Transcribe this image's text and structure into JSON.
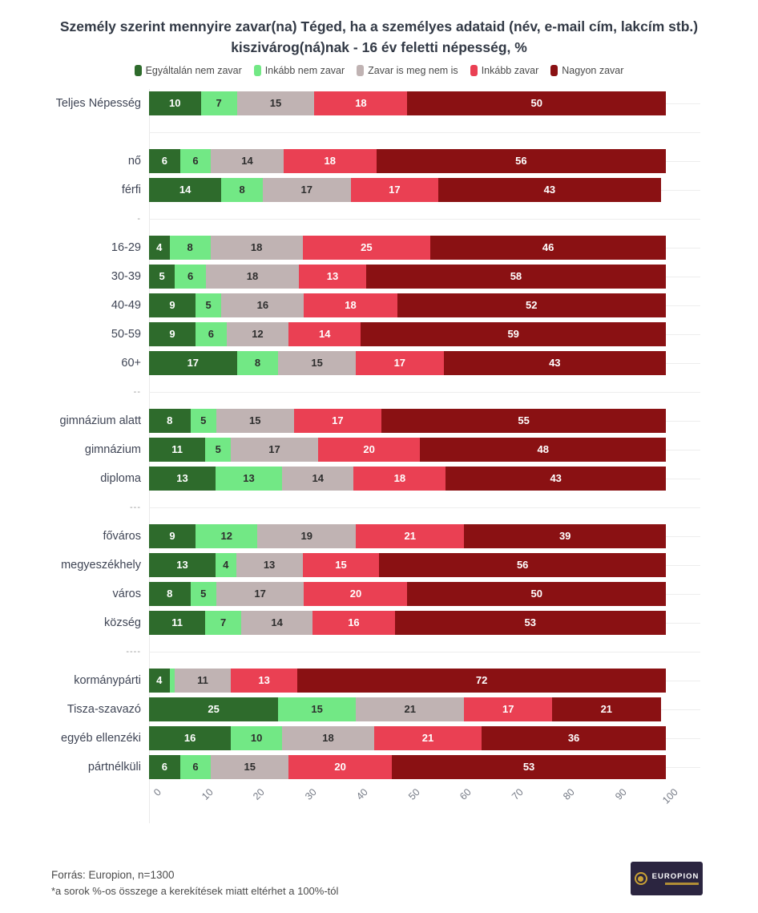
{
  "title": "Személy szerint mennyire zavar(na) Téged, ha a személyes adataid (név, e-mail cím, lakcím stb.) kiszivárog(ná)nak - 16 év feletti népesség, %",
  "legend": [
    {
      "label": "Egyáltalán nem zavar",
      "color": "#2e6b2c"
    },
    {
      "label": "Inkább nem zavar",
      "color": "#72e885"
    },
    {
      "label": "Zavar is meg nem is",
      "color": "#c0b3b3"
    },
    {
      "label": "Inkább zavar",
      "color": "#ea4053"
    },
    {
      "label": "Nagyon zavar",
      "color": "#8a1113"
    }
  ],
  "chart_data": {
    "type": "bar",
    "orientation": "horizontal",
    "stacked": true,
    "xlim": [
      0,
      100
    ],
    "x_ticks": [
      0,
      10,
      20,
      30,
      40,
      50,
      60,
      70,
      80,
      90,
      100
    ],
    "grid": true,
    "legend_position": "top",
    "series_names": [
      "Egyáltalán nem zavar",
      "Inkább nem zavar",
      "Zavar is meg nem is",
      "Inkább zavar",
      "Nagyon zavar"
    ],
    "value_text_colors": [
      "#ffffff",
      "#2e2e2e",
      "#2e2e2e",
      "#ffffff",
      "#ffffff"
    ],
    "rows": [
      {
        "label": "Teljes Népesség",
        "values": [
          10,
          7,
          15,
          18,
          50
        ]
      },
      {
        "separator": ""
      },
      {
        "label": "nő",
        "values": [
          6,
          6,
          14,
          18,
          56
        ]
      },
      {
        "label": "férfi",
        "values": [
          14,
          8,
          17,
          17,
          43
        ]
      },
      {
        "separator": "-"
      },
      {
        "label": "16-29",
        "values": [
          4,
          8,
          18,
          25,
          46
        ]
      },
      {
        "label": "30-39",
        "values": [
          5,
          6,
          18,
          13,
          58
        ]
      },
      {
        "label": "40-49",
        "values": [
          9,
          5,
          16,
          18,
          52
        ]
      },
      {
        "label": "50-59",
        "values": [
          9,
          6,
          12,
          14,
          59
        ]
      },
      {
        "label": "60+",
        "values": [
          17,
          8,
          15,
          17,
          43
        ]
      },
      {
        "separator": "--"
      },
      {
        "label": "gimnázium alatt",
        "values": [
          8,
          5,
          15,
          17,
          55
        ]
      },
      {
        "label": "gimnázium",
        "values": [
          11,
          5,
          17,
          20,
          48
        ]
      },
      {
        "label": "diploma",
        "values": [
          13,
          13,
          14,
          18,
          43
        ]
      },
      {
        "separator": "---"
      },
      {
        "label": "főváros",
        "values": [
          9,
          12,
          19,
          21,
          39
        ]
      },
      {
        "label": "megyeszékhely",
        "values": [
          13,
          4,
          13,
          15,
          56
        ]
      },
      {
        "label": "város",
        "values": [
          8,
          5,
          17,
          20,
          50
        ]
      },
      {
        "label": "község",
        "values": [
          11,
          7,
          14,
          16,
          53
        ]
      },
      {
        "separator": "----"
      },
      {
        "label": "kormánypárti",
        "values": [
          4,
          1,
          11,
          13,
          72
        ],
        "labels": [
          "4",
          "",
          "11",
          "13",
          "72"
        ]
      },
      {
        "label": "Tisza-szavazó",
        "values": [
          25,
          15,
          21,
          17,
          21
        ]
      },
      {
        "label": "egyéb ellenzéki",
        "values": [
          16,
          10,
          18,
          21,
          36
        ]
      },
      {
        "label": "pártnélküli",
        "values": [
          6,
          6,
          15,
          20,
          53
        ]
      }
    ]
  },
  "footer": {
    "source": "Forrás: Europion, n=1300",
    "note": "*a sorok %-os összege a kerekítések miatt eltérhet a 100%-tól"
  },
  "logo": {
    "name": "EUROPION",
    "bg": "#2b2540",
    "accent": "#c9a135"
  }
}
